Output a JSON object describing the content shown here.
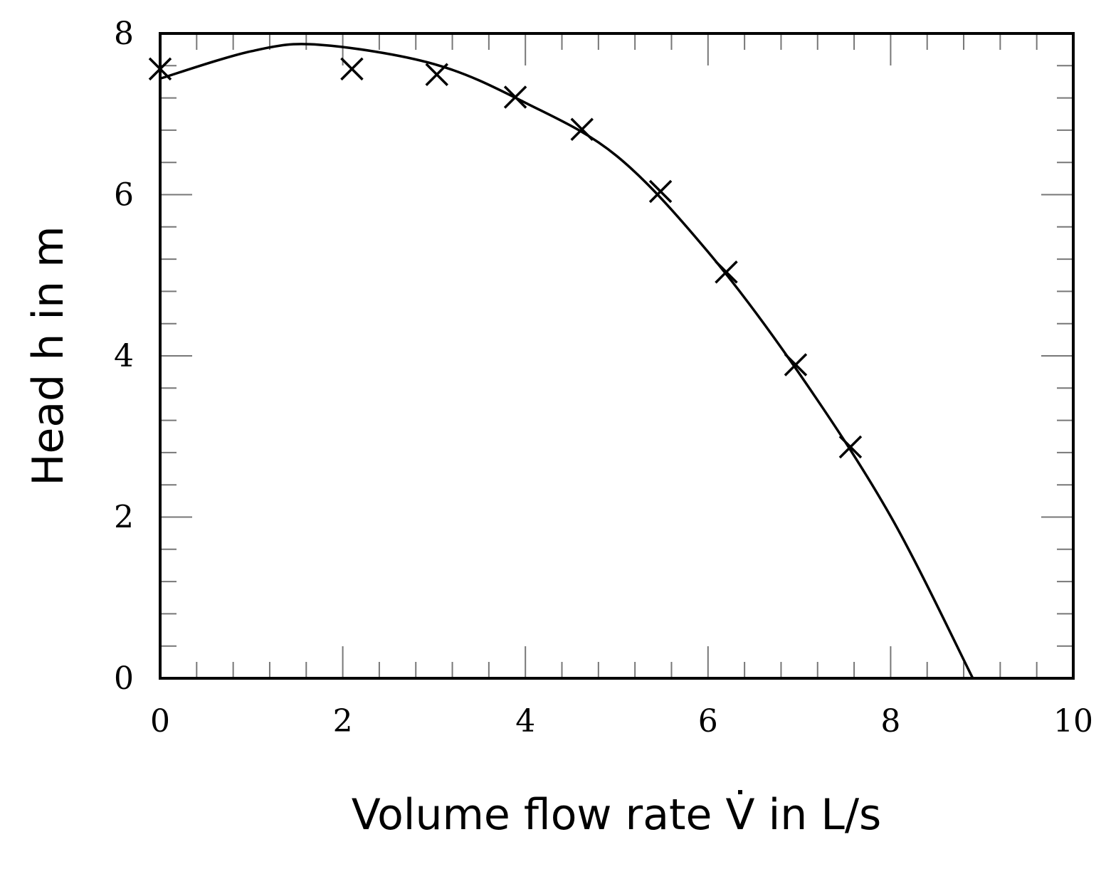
{
  "chart_data": {
    "type": "scatter",
    "xlabel": "Volume flow rate V̇ in L/s",
    "ylabel": "Head h in m",
    "xlim": [
      0,
      10
    ],
    "ylim": [
      0,
      8
    ],
    "xticks": [
      0,
      2,
      4,
      6,
      8,
      10
    ],
    "yticks": [
      0,
      2,
      4,
      6,
      8
    ],
    "series": [
      {
        "type": "scatter",
        "color": "#000000",
        "marker": "x",
        "x": [
          0,
          2.1,
          3.03,
          3.89,
          4.62,
          5.48,
          6.2,
          6.96,
          7.56
        ],
        "values": [
          7.56,
          7.56,
          7.49,
          7.21,
          6.81,
          6.04,
          5.04,
          3.89,
          2.87
        ]
      },
      {
        "type": "line",
        "color": "#000000",
        "x": [
          0,
          1,
          1.74,
          3,
          4,
          5,
          6,
          7,
          8,
          8.9
        ],
        "values": [
          7.44,
          7.78,
          7.86,
          7.62,
          7.14,
          6.48,
          5.29,
          3.78,
          2.01,
          0
        ]
      }
    ]
  }
}
